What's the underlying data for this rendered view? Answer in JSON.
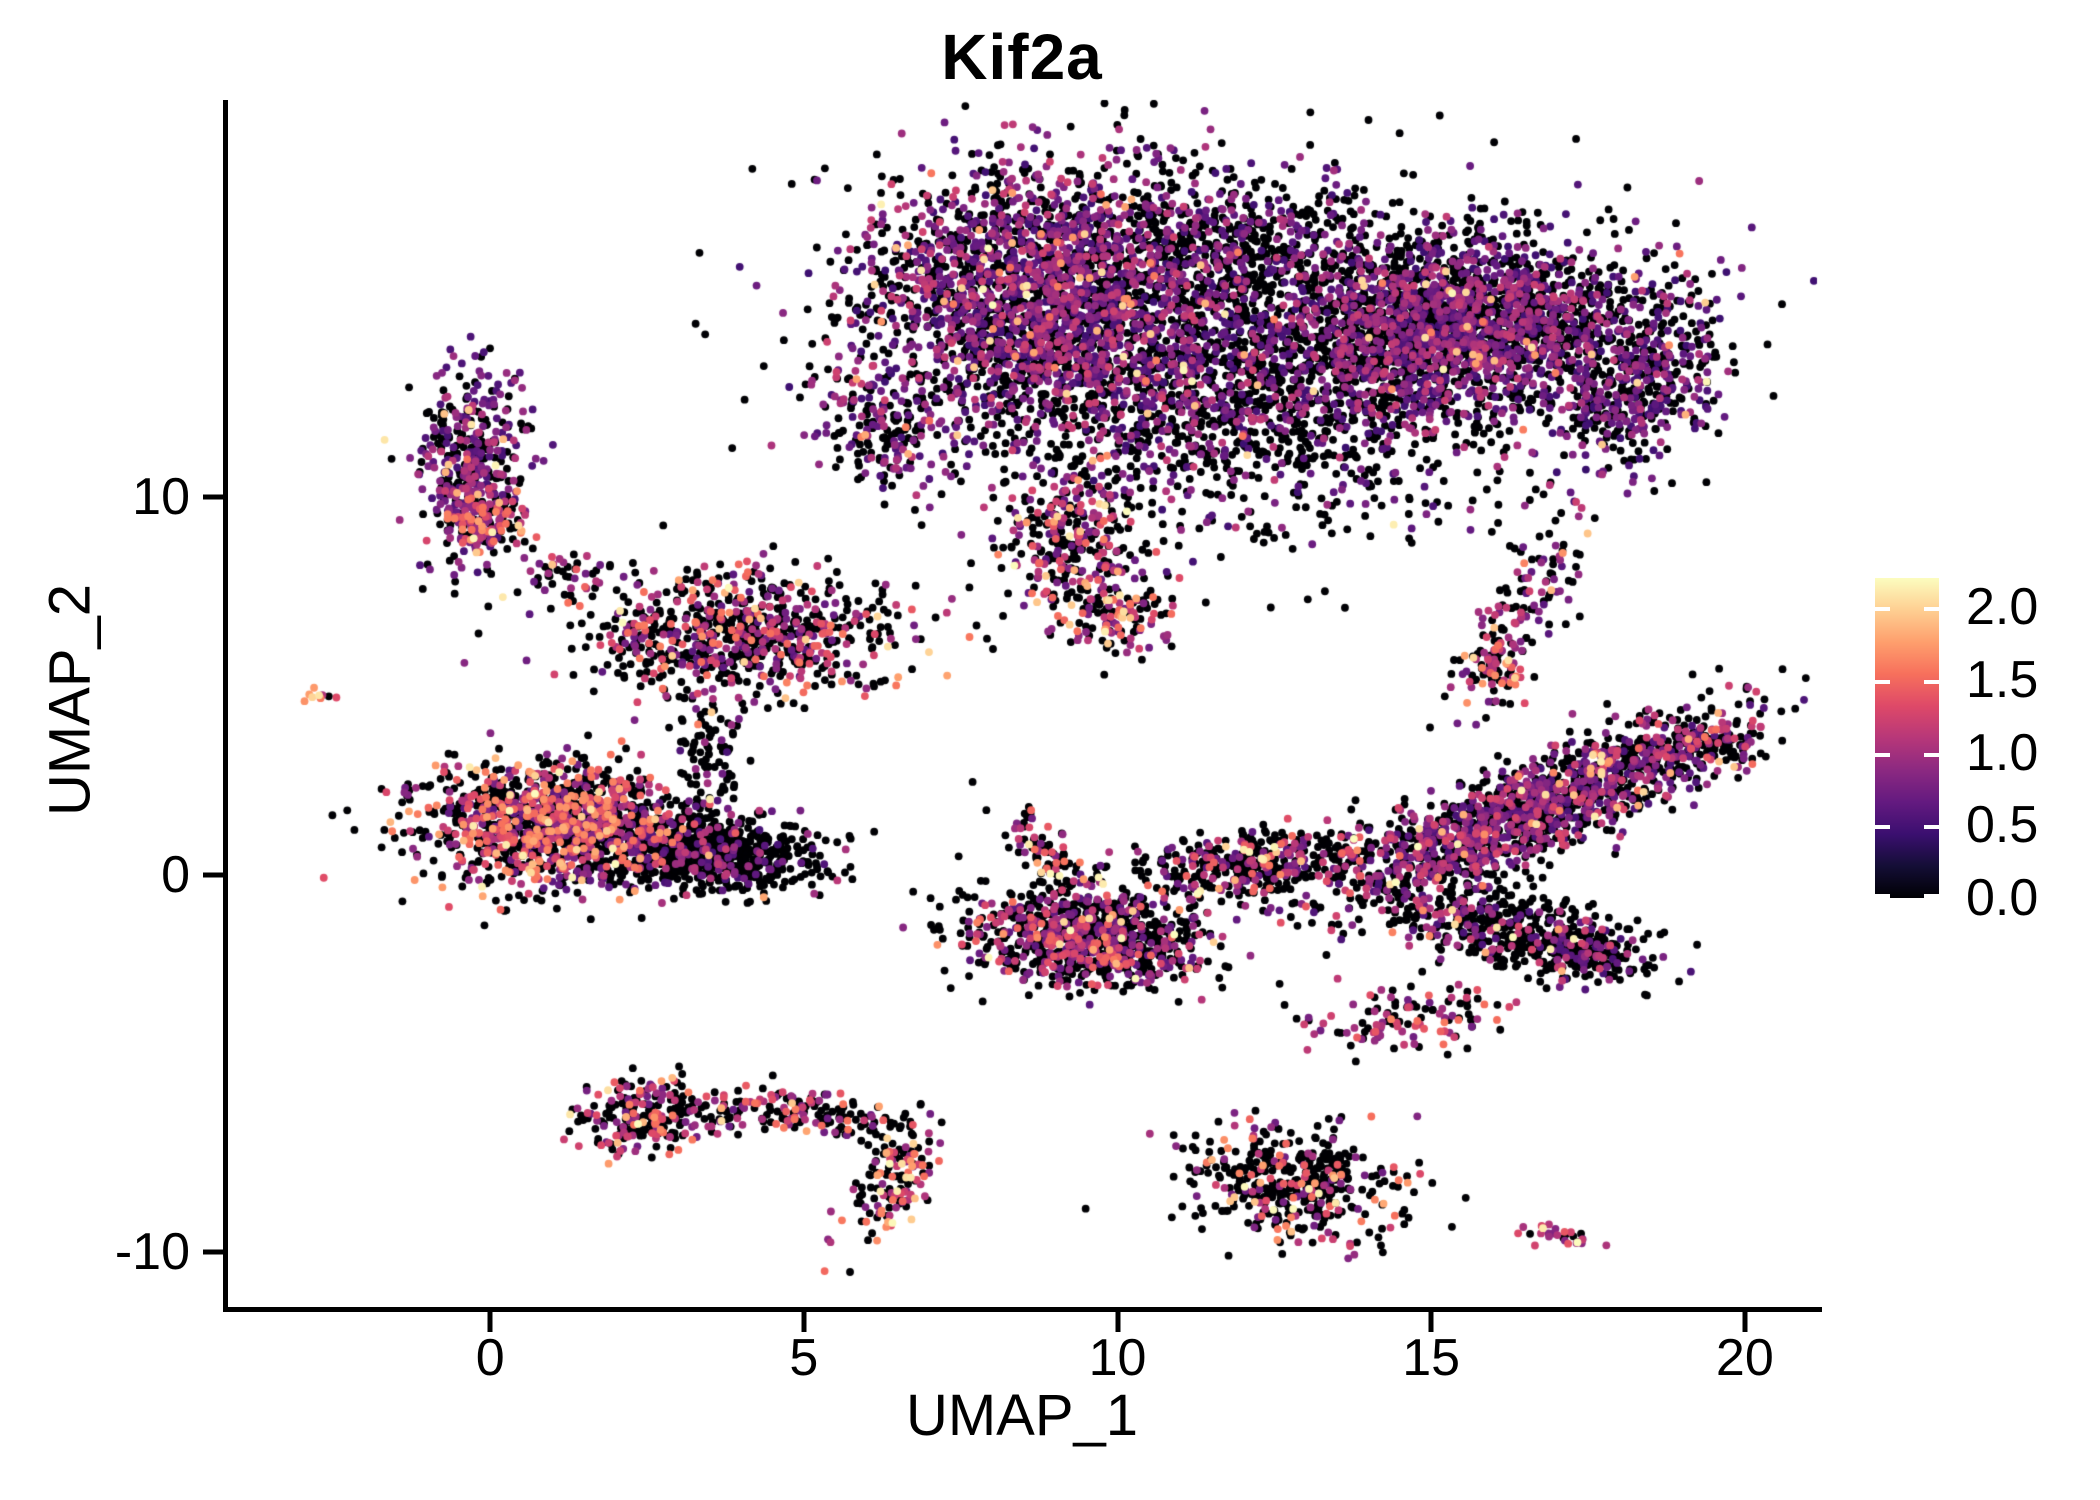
{
  "title": "Kif2a",
  "chart_data": {
    "type": "scatter",
    "subtype": "umap-feature-plot",
    "title": "Kif2a",
    "xlabel": "UMAP_1",
    "ylabel": "UMAP_2",
    "x_ticks": [
      0,
      5,
      10,
      15,
      20
    ],
    "y_ticks": [
      10,
      0,
      -10
    ],
    "xlim": [
      -4.18,
      21.15
    ],
    "ylim": [
      -11.45,
      20.53
    ],
    "grid": false,
    "point_radius_px": 3.9,
    "n_cells_approx": 17500,
    "legend": {
      "position": "right",
      "ticks": [
        "2.0",
        "1.5",
        "1.0",
        "0.5",
        "0.0"
      ],
      "tick_values": [
        2.0,
        1.5,
        1.0,
        0.5,
        0.0
      ],
      "vmin": 0,
      "vmax": 2.2
    },
    "colormap": {
      "name": "magma",
      "stops": [
        "#000004",
        "#140e36",
        "#3b0f70",
        "#641a80",
        "#8c2981",
        "#b73779",
        "#de4968",
        "#f7705c",
        "#fe9f6d",
        "#fecf92",
        "#fcfdbf"
      ]
    },
    "seed": 7,
    "clusters": [
      {
        "id": "top-left-lobe",
        "cx": 9.0,
        "cy": 15.3,
        "sx": 1.55,
        "sy": 1.75,
        "rot": 0,
        "n": 2700,
        "p": 0.55,
        "lo": 0.45,
        "hi": 1.25,
        "ph": 0.04
      },
      {
        "id": "top-right-lobe",
        "cx": 15.4,
        "cy": 14.6,
        "sx": 1.5,
        "sy": 1.15,
        "rot": 10,
        "n": 2300,
        "p": 0.5,
        "lo": 0.45,
        "hi": 1.2,
        "ph": 0.03
      },
      {
        "id": "top-right-hook",
        "cx": 18.3,
        "cy": 13.0,
        "sx": 0.6,
        "sy": 1.1,
        "rot": -20,
        "n": 420,
        "p": 0.5,
        "lo": 0.45,
        "hi": 1.1,
        "ph": 0.02
      },
      {
        "id": "top-mid-sparse",
        "cx": 12.2,
        "cy": 12.6,
        "sx": 2.1,
        "sy": 1.6,
        "rot": 0,
        "n": 1300,
        "p": 0.32,
        "lo": 0.45,
        "hi": 1.2,
        "ph": 0.03
      },
      {
        "id": "top-upper-mid",
        "cx": 12.0,
        "cy": 16.6,
        "sx": 1.2,
        "sy": 0.9,
        "rot": 0,
        "n": 400,
        "p": 0.3,
        "lo": 0.45,
        "hi": 1.1,
        "ph": 0.02
      },
      {
        "id": "top-halo",
        "cx": 12.0,
        "cy": 14.3,
        "sx": 3.4,
        "sy": 2.5,
        "rot": 0,
        "n": 320,
        "p": 0.15,
        "lo": 0.4,
        "hi": 1.0,
        "ph": 0.01
      },
      {
        "id": "top-neck",
        "cx": 9.2,
        "cy": 8.9,
        "sx": 0.55,
        "sy": 0.9,
        "rot": 0,
        "n": 260,
        "p": 0.5,
        "lo": 0.6,
        "hi": 1.5,
        "ph": 0.12
      },
      {
        "id": "top-neck-lower",
        "cx": 9.9,
        "cy": 6.9,
        "sx": 0.5,
        "sy": 0.6,
        "rot": 0,
        "n": 150,
        "p": 0.55,
        "lo": 0.7,
        "hi": 1.6,
        "ph": 0.15
      },
      {
        "id": "top-left-protrusion",
        "cx": 6.2,
        "cy": 11.9,
        "sx": 0.45,
        "sy": 0.95,
        "rot": 15,
        "n": 170,
        "p": 0.45,
        "lo": 0.5,
        "hi": 1.2,
        "ph": 0.05
      },
      {
        "id": "left-column",
        "cx": -0.3,
        "cy": 10.8,
        "sx": 0.42,
        "sy": 1.3,
        "rot": 0,
        "n": 430,
        "p": 0.55,
        "lo": 0.5,
        "hi": 1.15,
        "ph": 0.03
      },
      {
        "id": "left-column-tip",
        "cx": -0.15,
        "cy": 9.35,
        "sx": 0.33,
        "sy": 0.4,
        "rot": 0,
        "n": 130,
        "p": 0.6,
        "lo": 0.8,
        "hi": 1.7,
        "ph": 0.2
      },
      {
        "id": "small-mid-cluster",
        "cx": 1.2,
        "cy": 8.1,
        "sx": 0.45,
        "sy": 0.3,
        "rot": -15,
        "n": 45,
        "p": 0.4,
        "lo": 0.7,
        "hi": 1.5,
        "ph": 0.1
      },
      {
        "id": "mid-left-cluster",
        "cx": 4.0,
        "cy": 6.4,
        "sx": 1.25,
        "sy": 0.8,
        "rot": 0,
        "n": 750,
        "p": 0.42,
        "lo": 0.6,
        "hi": 1.6,
        "ph": 0.12
      },
      {
        "id": "mid-left-tail",
        "cx": 3.4,
        "cy": 3.6,
        "sx": 0.3,
        "sy": 1.1,
        "rot": 10,
        "n": 100,
        "p": 0.2,
        "lo": 0.5,
        "hi": 1.2,
        "ph": 0.05
      },
      {
        "id": "far-left-dot",
        "cx": -2.68,
        "cy": 4.72,
        "sx": 0.16,
        "sy": 0.12,
        "rot": 0,
        "n": 9,
        "p": 0.7,
        "lo": 1.0,
        "hi": 1.8,
        "ph": 0.3
      },
      {
        "id": "left-oval-west",
        "cx": 1.1,
        "cy": 1.3,
        "sx": 1.05,
        "sy": 0.8,
        "rot": -5,
        "n": 1400,
        "p": 0.5,
        "lo": 0.6,
        "hi": 1.8,
        "ph": 0.1
      },
      {
        "id": "left-oval-east",
        "cx": 3.4,
        "cy": 0.6,
        "sx": 0.95,
        "sy": 0.5,
        "rot": -12,
        "n": 750,
        "p": 0.18,
        "lo": 0.5,
        "hi": 1.2,
        "ph": 0.03
      },
      {
        "id": "manta-left-lobe",
        "cx": 9.5,
        "cy": -1.7,
        "sx": 0.95,
        "sy": 0.6,
        "rot": -10,
        "n": 950,
        "p": 0.38,
        "lo": 0.6,
        "hi": 1.5,
        "ph": 0.08
      },
      {
        "id": "manta-spike",
        "cx": 8.95,
        "cy": 0.4,
        "sx": 0.22,
        "sy": 0.75,
        "rot": 25,
        "n": 90,
        "p": 0.35,
        "lo": 0.7,
        "hi": 1.6,
        "ph": 0.15
      },
      {
        "id": "manta-bridge",
        "cx": 12.5,
        "cy": 0.3,
        "sx": 1.25,
        "sy": 0.45,
        "rot": 8,
        "n": 480,
        "p": 0.42,
        "lo": 0.6,
        "hi": 1.5,
        "ph": 0.1
      },
      {
        "id": "manta-right-wing",
        "cx": 16.6,
        "cy": 1.7,
        "sx": 1.9,
        "sy": 0.55,
        "rot": 38,
        "n": 1500,
        "p": 0.45,
        "lo": 0.5,
        "hi": 1.3,
        "ph": 0.05
      },
      {
        "id": "wing-tip",
        "cx": 19.2,
        "cy": 3.4,
        "sx": 0.5,
        "sy": 0.4,
        "rot": 0,
        "n": 120,
        "p": 0.5,
        "lo": 0.6,
        "hi": 1.5,
        "ph": 0.12
      },
      {
        "id": "manta-claw",
        "cx": 16.3,
        "cy": -1.5,
        "sx": 1.1,
        "sy": 0.5,
        "rot": -15,
        "n": 470,
        "p": 0.28,
        "lo": 0.5,
        "hi": 1.3,
        "ph": 0.05
      },
      {
        "id": "claw-hook",
        "cx": 17.5,
        "cy": -2.2,
        "sx": 0.4,
        "sy": 0.35,
        "rot": 0,
        "n": 120,
        "p": 0.3,
        "lo": 0.5,
        "hi": 1.3,
        "ph": 0.05
      },
      {
        "id": "right-s-cluster",
        "cx": 16.3,
        "cy": 6.6,
        "sx": 0.32,
        "sy": 1.35,
        "rot": -18,
        "n": 140,
        "p": 0.45,
        "lo": 0.6,
        "hi": 1.3,
        "ph": 0.08
      },
      {
        "id": "right-s-tip",
        "cx": 16.05,
        "cy": 5.45,
        "sx": 0.25,
        "sy": 0.3,
        "rot": 0,
        "n": 60,
        "p": 0.65,
        "lo": 0.9,
        "hi": 1.8,
        "ph": 0.25
      },
      {
        "id": "banana-cluster",
        "cx": 14.9,
        "cy": -3.85,
        "sx": 0.85,
        "sy": 0.42,
        "rot": 15,
        "n": 120,
        "p": 0.5,
        "lo": 0.7,
        "hi": 1.6,
        "ph": 0.12
      },
      {
        "id": "bottom-left-blob",
        "cx": 2.55,
        "cy": -6.35,
        "sx": 0.55,
        "sy": 0.5,
        "rot": 0,
        "n": 230,
        "p": 0.48,
        "lo": 0.7,
        "hi": 1.6,
        "ph": 0.12
      },
      {
        "id": "bottom-left-trail",
        "cx": 3.6,
        "cy": -6.6,
        "sx": 0.5,
        "sy": 0.2,
        "rot": 0,
        "n": 25,
        "p": 0.4,
        "lo": 0.6,
        "hi": 1.5,
        "ph": 0.15
      },
      {
        "id": "crescent-top",
        "cx": 5.2,
        "cy": -6.3,
        "sx": 0.8,
        "sy": 0.28,
        "rot": -10,
        "n": 150,
        "p": 0.42,
        "lo": 0.7,
        "hi": 1.6,
        "ph": 0.12
      },
      {
        "id": "crescent-hook",
        "cx": 6.4,
        "cy": -8.1,
        "sx": 0.3,
        "sy": 0.85,
        "rot": -15,
        "n": 150,
        "p": 0.55,
        "lo": 0.8,
        "hi": 1.7,
        "ph": 0.2
      },
      {
        "id": "bottom-right-blob",
        "cx": 12.8,
        "cy": -8.15,
        "sx": 0.95,
        "sy": 0.75,
        "rot": -25,
        "n": 430,
        "p": 0.3,
        "lo": 0.7,
        "hi": 1.7,
        "ph": 0.12
      },
      {
        "id": "bottom-dash",
        "cx": 17.0,
        "cy": -9.55,
        "sx": 0.33,
        "sy": 0.12,
        "rot": -12,
        "n": 28,
        "p": 0.75,
        "lo": 0.8,
        "hi": 1.4,
        "ph": 0.1
      }
    ]
  }
}
